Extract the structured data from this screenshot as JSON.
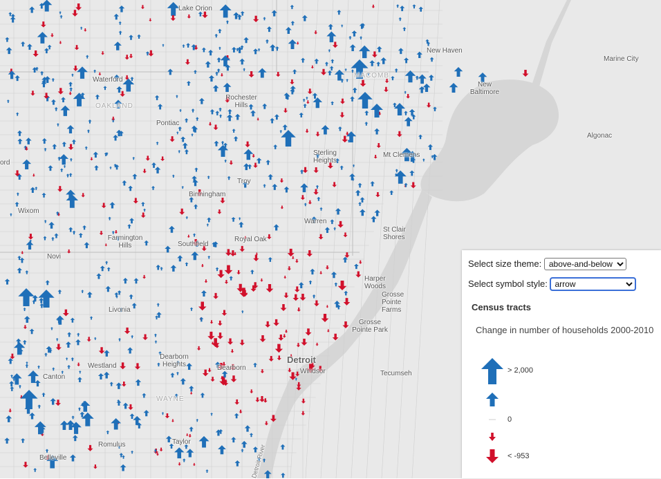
{
  "map": {
    "places": [
      "Lake Orion",
      "New Haven",
      "Marine City",
      "Waterford",
      "Rochester Hills",
      "New Baltimore",
      "Pontiac",
      "Algonac",
      "Sterling Heights",
      "Mt Clemens",
      "Troy",
      "Birmingham",
      "Wixom",
      "Warren",
      "St Clair Shores",
      "Farmington Hills",
      "Southfield",
      "Royal Oak",
      "Novi",
      "Harper Woods",
      "Grosse Pointe Farms",
      "Livonia",
      "Grosse Pointe Park",
      "Detroit",
      "Dearborn Heights",
      "Westland",
      "Dearborn",
      "Windsor",
      "Tecumseh",
      "Canton",
      "Romulus",
      "Taylor",
      "Belleville",
      "OAKLAND",
      "MACOMB",
      "WAYNE",
      "ord",
      "Detroit River"
    ]
  },
  "panel": {
    "size_theme_label": "Select size theme:",
    "size_theme_value": "above-and-below",
    "symbol_style_label": "Select symbol style:",
    "symbol_style_value": "arrow",
    "legend_title": "Census tracts",
    "legend_field": "Change in number of households 2000-2010",
    "legend_items": [
      {
        "label": "> 2,000",
        "direction": "up",
        "size": "large",
        "color": "#1f6fb8"
      },
      {
        "label": "",
        "direction": "up",
        "size": "medium",
        "color": "#1f6fb8"
      },
      {
        "label": "0",
        "direction": "none",
        "size": "line",
        "color": "#cccccc"
      },
      {
        "label": "",
        "direction": "down",
        "size": "small",
        "color": "#d1102b"
      },
      {
        "label": "< -953",
        "direction": "down",
        "size": "medium",
        "color": "#d1102b"
      }
    ]
  },
  "colors": {
    "increase": "#1f6fb8",
    "decrease": "#d1102b",
    "water": "#d4d4d4",
    "land": "#eaeaea"
  }
}
